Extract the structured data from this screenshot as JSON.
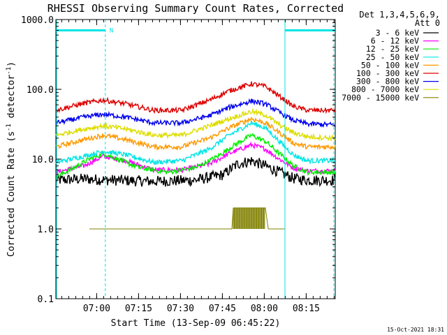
{
  "chart_data": {
    "type": "line",
    "title": "RHESSI Observing Summary Count Rates, Corrected",
    "xlabel": "Start Time (13-Sep-09 06:45:22)",
    "ylabel": "Corrected Count Rate (s⁻¹ detector⁻¹)",
    "ylabel_main": "Corrected Count Rate (s",
    "ylabel_sup1": "-1",
    "ylabel_mid": " detector",
    "ylabel_sup2": "-1",
    "ylabel_end": ")",
    "yscale": "log",
    "ylim": [
      0.1,
      1000
    ],
    "xlim": [
      0,
      100
    ],
    "x_unit": "minutes after 06:45:22",
    "y_ticks": [
      0.1,
      1.0,
      10.0,
      100.0,
      1000.0
    ],
    "y_tick_labels": [
      "0.1",
      "1.0",
      "10.0",
      "100.0",
      "1000.0"
    ],
    "x_ticks": [
      {
        "label": "07:00",
        "t": 14.6
      },
      {
        "label": "07:15",
        "t": 29.6
      },
      {
        "label": "07:30",
        "t": 44.6
      },
      {
        "label": "07:45",
        "t": 59.6
      },
      {
        "label": "08:00",
        "t": 74.6
      },
      {
        "label": "08:15",
        "t": 89.6
      }
    ],
    "legend_position": "right-outside",
    "legend_header": [
      "Det 1,3,4,5,6,9,",
      "Att 0"
    ],
    "night_marker": "N",
    "cyan_bars_y": 700,
    "cyan_bars": [
      [
        0,
        17.7
      ],
      [
        82.0,
        100
      ]
    ],
    "cyan_vlines_dashed": [
      17.7,
      99.5
    ],
    "cyan_vlines_solid": [
      0,
      82.0
    ],
    "series": [
      {
        "name": "3 - 6 keV",
        "color": "#000000",
        "data": [
          [
            0,
            5.0
          ],
          [
            10,
            5.2
          ],
          [
            20,
            5.0
          ],
          [
            35,
            4.8
          ],
          [
            50,
            5.0
          ],
          [
            60,
            6.0
          ],
          [
            65,
            8.5
          ],
          [
            70,
            9.5
          ],
          [
            75,
            8.0
          ],
          [
            80,
            6.5
          ],
          [
            85,
            5.3
          ],
          [
            90,
            5.0
          ],
          [
            100,
            5.0
          ]
        ]
      },
      {
        "name": "6 - 12 keV",
        "color": "#ff00ff",
        "data": [
          [
            0,
            6.5
          ],
          [
            10,
            8.0
          ],
          [
            17,
            11.0
          ],
          [
            25,
            9.5
          ],
          [
            35,
            7.0
          ],
          [
            45,
            7.0
          ],
          [
            55,
            8.5
          ],
          [
            62,
            12.0
          ],
          [
            70,
            16.0
          ],
          [
            75,
            14.0
          ],
          [
            80,
            10.0
          ],
          [
            85,
            7.5
          ],
          [
            90,
            6.8
          ],
          [
            100,
            6.8
          ]
        ]
      },
      {
        "name": "12 - 25 keV",
        "color": "#00ee00",
        "data": [
          [
            0,
            5.5
          ],
          [
            5,
            7.0
          ],
          [
            12,
            10.0
          ],
          [
            17,
            12.0
          ],
          [
            22,
            10.0
          ],
          [
            30,
            7.5
          ],
          [
            40,
            6.5
          ],
          [
            50,
            7.5
          ],
          [
            58,
            11.0
          ],
          [
            64,
            16.0
          ],
          [
            70,
            22.0
          ],
          [
            75,
            18.0
          ],
          [
            80,
            12.0
          ],
          [
            85,
            8.0
          ],
          [
            90,
            6.5
          ],
          [
            100,
            6.5
          ]
        ]
      },
      {
        "name": "25 - 50 keV",
        "color": "#00e5e5",
        "data": [
          [
            0,
            9.0
          ],
          [
            10,
            11.0
          ],
          [
            17,
            13.0
          ],
          [
            25,
            11.5
          ],
          [
            35,
            9.0
          ],
          [
            45,
            9.5
          ],
          [
            55,
            14.0
          ],
          [
            62,
            22.0
          ],
          [
            70,
            33.0
          ],
          [
            75,
            28.0
          ],
          [
            80,
            18.0
          ],
          [
            85,
            11.5
          ],
          [
            90,
            9.5
          ],
          [
            100,
            9.5
          ]
        ]
      },
      {
        "name": "50 - 100 keV",
        "color": "#ff9900",
        "data": [
          [
            0,
            15.0
          ],
          [
            10,
            19.0
          ],
          [
            17,
            22.0
          ],
          [
            25,
            19.0
          ],
          [
            35,
            15.0
          ],
          [
            45,
            15.0
          ],
          [
            55,
            20.0
          ],
          [
            62,
            28.0
          ],
          [
            70,
            38.0
          ],
          [
            75,
            33.0
          ],
          [
            80,
            24.0
          ],
          [
            85,
            17.0
          ],
          [
            90,
            15.0
          ],
          [
            100,
            15.0
          ]
        ]
      },
      {
        "name": "100 - 300 keV",
        "color": "#dd0000",
        "data": [
          [
            0,
            50.0
          ],
          [
            10,
            63.0
          ],
          [
            17,
            70.0
          ],
          [
            25,
            62.0
          ],
          [
            35,
            50.0
          ],
          [
            45,
            50.0
          ],
          [
            55,
            70.0
          ],
          [
            62,
            95.0
          ],
          [
            70,
            120.0
          ],
          [
            75,
            110.0
          ],
          [
            80,
            80.0
          ],
          [
            85,
            57.0
          ],
          [
            90,
            50.0
          ],
          [
            100,
            50.0
          ]
        ]
      },
      {
        "name": "300 - 800 keV",
        "color": "#0000ee",
        "data": [
          [
            0,
            33.0
          ],
          [
            10,
            40.0
          ],
          [
            17,
            44.0
          ],
          [
            25,
            40.0
          ],
          [
            35,
            33.0
          ],
          [
            45,
            33.0
          ],
          [
            55,
            42.0
          ],
          [
            62,
            55.0
          ],
          [
            70,
            68.0
          ],
          [
            75,
            62.0
          ],
          [
            80,
            47.0
          ],
          [
            85,
            36.0
          ],
          [
            90,
            32.0
          ],
          [
            100,
            31.0
          ]
        ]
      },
      {
        "name": "800 - 7000 keV",
        "color": "#dddd00",
        "data": [
          [
            0,
            22.0
          ],
          [
            10,
            27.0
          ],
          [
            17,
            30.0
          ],
          [
            25,
            27.0
          ],
          [
            35,
            22.0
          ],
          [
            45,
            22.0
          ],
          [
            55,
            30.0
          ],
          [
            62,
            38.0
          ],
          [
            70,
            48.0
          ],
          [
            75,
            43.0
          ],
          [
            80,
            31.0
          ],
          [
            85,
            24.0
          ],
          [
            90,
            21.0
          ],
          [
            100,
            20.0
          ]
        ]
      },
      {
        "name": "7000 - 15000 keV",
        "color": "#808000",
        "data": [
          [
            12,
            1.0
          ],
          [
            18,
            1.0
          ],
          [
            58,
            1.0
          ],
          [
            63,
            1.0
          ],
          [
            63.5,
            2.0
          ],
          [
            75,
            2.0
          ],
          [
            76,
            1.0
          ],
          [
            82,
            1.0
          ]
        ]
      }
    ]
  },
  "footer_timestamp": "15-Oct-2021 18:31"
}
